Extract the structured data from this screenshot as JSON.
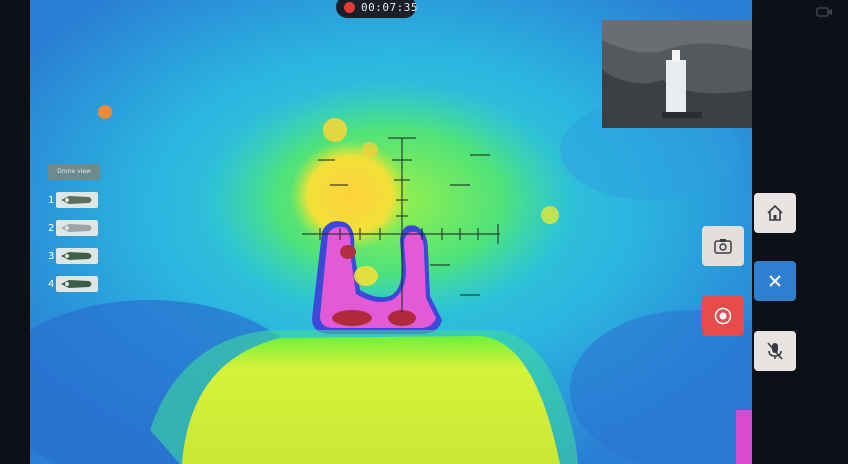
{
  "recording": {
    "time": "00:07:35",
    "indicator_color": "#e23b32"
  },
  "drone_panel": {
    "header": "Drone view",
    "items": [
      {
        "number": "1"
      },
      {
        "number": "2"
      },
      {
        "number": "3"
      },
      {
        "number": "4"
      }
    ]
  },
  "controls": {
    "home": "home-icon",
    "camera": "camera-switch-icon",
    "close": "close-icon",
    "record": "record-icon",
    "mic": "mic-muted-icon"
  },
  "colors": {
    "accent_blue": "#2f7fd0",
    "record_red": "#e74b4a",
    "thermal_hot": "#e05ad8",
    "thermal_warm": "#f4d23a",
    "thermal_mid": "#38e090",
    "thermal_cool": "#2a8bd8"
  }
}
